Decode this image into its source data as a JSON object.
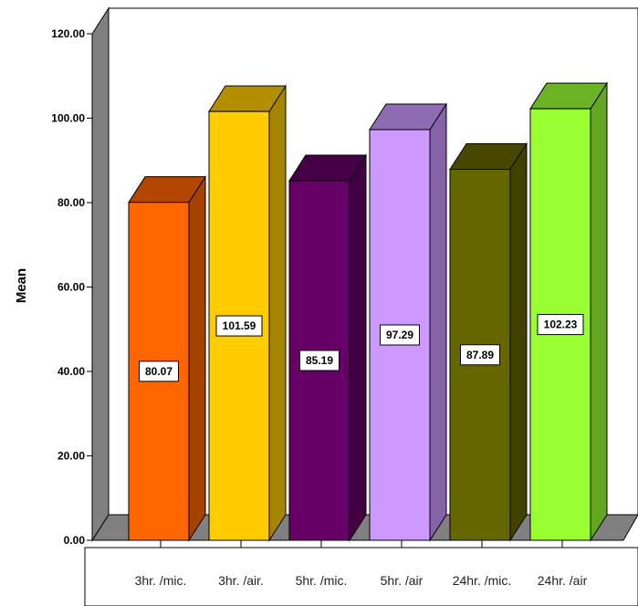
{
  "chart_data": {
    "type": "bar",
    "ylabel": "Mean",
    "xlabel": "",
    "ylim": [
      0,
      120
    ],
    "yticks": [
      "0.00",
      "20.00",
      "40.00",
      "60.00",
      "80.00",
      "100.00",
      "120.00"
    ],
    "categories": [
      "3hr. /mic.",
      "3hr. /air.",
      "5hr. /mic.",
      "5hr. /air",
      "24hr. /mic.",
      "24hr. /air"
    ],
    "values": [
      80.07,
      101.59,
      85.19,
      97.29,
      87.89,
      102.23
    ],
    "value_labels": [
      "80.07",
      "101.59",
      "85.19",
      "97.29",
      "87.89",
      "102.23"
    ],
    "colors": [
      "#FF6600",
      "#FFCC00",
      "#660066",
      "#CC99FF",
      "#666600",
      "#99FF33"
    ],
    "grid": false,
    "style": "3d"
  }
}
